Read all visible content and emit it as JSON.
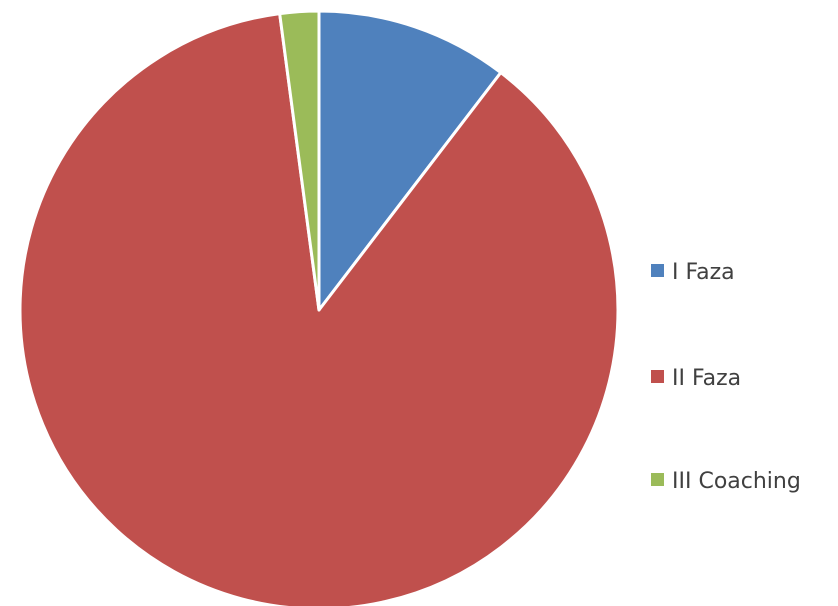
{
  "chart_data": {
    "type": "pie",
    "title": "",
    "categories": [
      "I Faza",
      "II Faza",
      "III Coaching"
    ],
    "values": [
      10.4,
      87.5,
      2.1
    ],
    "colors": [
      "#4f81bd",
      "#c0504d",
      "#9bbb59"
    ],
    "start_angle_deg": 0,
    "direction": "clockwise",
    "slice_border_color": "#ffffff",
    "legend_position": "right"
  }
}
